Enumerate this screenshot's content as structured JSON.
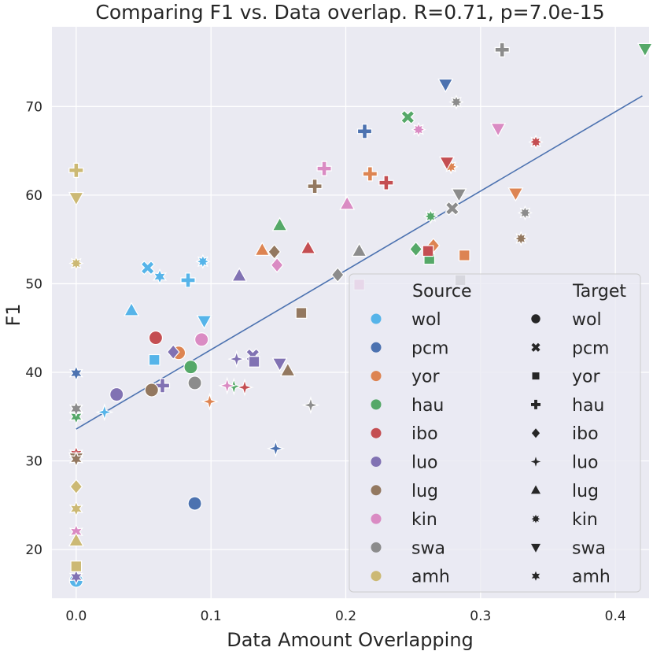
{
  "chart_data": {
    "type": "scatter",
    "title": "Comparing F1 vs. Data overlap. R=0.71, p=7.0e-15",
    "xlabel": "Data Amount Overlapping",
    "ylabel": "F1",
    "xlim": [
      -0.018,
      0.425
    ],
    "ylim": [
      14.5,
      79.0
    ],
    "x_ticks": [
      0.0,
      0.1,
      0.2,
      0.3,
      0.4
    ],
    "x_tick_labels": [
      "0.0",
      "0.1",
      "0.2",
      "0.3",
      "0.4"
    ],
    "y_ticks": [
      20,
      30,
      40,
      50,
      60,
      70
    ],
    "y_tick_labels": [
      "20",
      "30",
      "40",
      "50",
      "60",
      "70"
    ],
    "grid": true,
    "legend_placement": "bottom-right",
    "regression_line": {
      "x": [
        0.0,
        0.42
      ],
      "y": [
        33.6,
        71.2
      ],
      "color": "#4c72b0"
    },
    "sources": [
      {
        "name": "wol",
        "color": "#56b4e9"
      },
      {
        "name": "pcm",
        "color": "#4c72b0"
      },
      {
        "name": "yor",
        "color": "#dd8452"
      },
      {
        "name": "hau",
        "color": "#55a868"
      },
      {
        "name": "ibo",
        "color": "#c44e52"
      },
      {
        "name": "luo",
        "color": "#8172b3"
      },
      {
        "name": "lug",
        "color": "#937860"
      },
      {
        "name": "kin",
        "color": "#da8bc3"
      },
      {
        "name": "swa",
        "color": "#8c8c8c"
      },
      {
        "name": "amh",
        "color": "#ccb974"
      }
    ],
    "targets": [
      {
        "name": "wol",
        "marker": "circle"
      },
      {
        "name": "pcm",
        "marker": "x"
      },
      {
        "name": "yor",
        "marker": "square"
      },
      {
        "name": "hau",
        "marker": "plus"
      },
      {
        "name": "ibo",
        "marker": "diamond"
      },
      {
        "name": "luo",
        "marker": "star4"
      },
      {
        "name": "lug",
        "marker": "triangle-up"
      },
      {
        "name": "kin",
        "marker": "star8"
      },
      {
        "name": "swa",
        "marker": "triangle-down"
      },
      {
        "name": "amh",
        "marker": "star6"
      }
    ],
    "points": [
      {
        "source": "wol",
        "target": "wol",
        "x": 0.0,
        "y": 16.5
      },
      {
        "source": "wol",
        "target": "pcm",
        "x": 0.053,
        "y": 51.8
      },
      {
        "source": "wol",
        "target": "yor",
        "x": 0.058,
        "y": 41.4
      },
      {
        "source": "wol",
        "target": "hau",
        "x": 0.083,
        "y": 50.4
      },
      {
        "source": "wol",
        "target": "luo",
        "x": 0.021,
        "y": 35.5
      },
      {
        "source": "wol",
        "target": "lug",
        "x": 0.041,
        "y": 47.0
      },
      {
        "source": "wol",
        "target": "kin",
        "x": 0.094,
        "y": 52.5
      },
      {
        "source": "wol",
        "target": "swa",
        "x": 0.095,
        "y": 45.8
      },
      {
        "source": "wol",
        "target": "amh",
        "x": 0.062,
        "y": 50.8
      },
      {
        "source": "pcm",
        "target": "wol",
        "x": 0.088,
        "y": 25.2
      },
      {
        "source": "pcm",
        "target": "hau",
        "x": 0.214,
        "y": 67.2
      },
      {
        "source": "pcm",
        "target": "luo",
        "x": 0.148,
        "y": 31.4
      },
      {
        "source": "pcm",
        "target": "swa",
        "x": 0.274,
        "y": 72.5
      },
      {
        "source": "pcm",
        "target": "amh",
        "x": 0.0,
        "y": 39.9
      },
      {
        "source": "yor",
        "target": "wol",
        "x": 0.076,
        "y": 42.2
      },
      {
        "source": "yor",
        "target": "yor",
        "x": 0.288,
        "y": 53.2
      },
      {
        "source": "yor",
        "target": "hau",
        "x": 0.218,
        "y": 62.4
      },
      {
        "source": "yor",
        "target": "ibo",
        "x": 0.265,
        "y": 54.3
      },
      {
        "source": "yor",
        "target": "luo",
        "x": 0.099,
        "y": 36.7
      },
      {
        "source": "yor",
        "target": "lug",
        "x": 0.138,
        "y": 53.8
      },
      {
        "source": "yor",
        "target": "kin",
        "x": 0.278,
        "y": 63.2
      },
      {
        "source": "yor",
        "target": "swa",
        "x": 0.326,
        "y": 60.2
      },
      {
        "source": "hau",
        "target": "wol",
        "x": 0.085,
        "y": 40.6
      },
      {
        "source": "hau",
        "target": "pcm",
        "x": 0.246,
        "y": 68.8
      },
      {
        "source": "hau",
        "target": "yor",
        "x": 0.262,
        "y": 52.8
      },
      {
        "source": "hau",
        "target": "ibo",
        "x": 0.252,
        "y": 53.9
      },
      {
        "source": "hau",
        "target": "luo",
        "x": 0.117,
        "y": 38.4
      },
      {
        "source": "hau",
        "target": "lug",
        "x": 0.151,
        "y": 56.6
      },
      {
        "source": "hau",
        "target": "star8",
        "x": 0.263,
        "y": 57.6
      },
      {
        "source": "hau",
        "target": "amh",
        "x": 0.0,
        "y": 35.0
      },
      {
        "source": "ibo",
        "target": "wol",
        "x": 0.059,
        "y": 43.9
      },
      {
        "source": "ibo",
        "target": "yor",
        "x": 0.261,
        "y": 53.7
      },
      {
        "source": "ibo",
        "target": "hau",
        "x": 0.23,
        "y": 61.4
      },
      {
        "source": "ibo",
        "target": "luo",
        "x": 0.125,
        "y": 38.3
      },
      {
        "source": "ibo",
        "target": "lug",
        "x": 0.172,
        "y": 54.0
      },
      {
        "source": "ibo",
        "target": "kin",
        "x": 0.341,
        "y": 66.0
      },
      {
        "source": "ibo",
        "target": "swa",
        "x": 0.275,
        "y": 63.7
      },
      {
        "source": "ibo",
        "target": "amh",
        "x": 0.0,
        "y": 30.8
      },
      {
        "source": "luo",
        "target": "wol",
        "x": 0.03,
        "y": 37.5
      },
      {
        "source": "luo",
        "target": "pcm",
        "x": 0.131,
        "y": 41.9
      },
      {
        "source": "luo",
        "target": "yor",
        "x": 0.132,
        "y": 41.2
      },
      {
        "source": "luo",
        "target": "hau",
        "x": 0.064,
        "y": 38.5
      },
      {
        "source": "luo",
        "target": "ibo",
        "x": 0.072,
        "y": 42.3
      },
      {
        "source": "luo",
        "target": "luo",
        "x": 0.119,
        "y": 41.5
      },
      {
        "source": "luo",
        "target": "lug",
        "x": 0.121,
        "y": 50.9
      },
      {
        "source": "luo",
        "target": "swa",
        "x": 0.151,
        "y": 41.0
      },
      {
        "source": "luo",
        "target": "amh",
        "x": 0.0,
        "y": 16.9
      },
      {
        "source": "lug",
        "target": "wol",
        "x": 0.056,
        "y": 38.0
      },
      {
        "source": "lug",
        "target": "yor",
        "x": 0.167,
        "y": 46.7
      },
      {
        "source": "lug",
        "target": "hau",
        "x": 0.177,
        "y": 61.0
      },
      {
        "source": "lug",
        "target": "ibo",
        "x": 0.147,
        "y": 53.6
      },
      {
        "source": "lug",
        "target": "lug",
        "x": 0.157,
        "y": 40.2
      },
      {
        "source": "lug",
        "target": "kin",
        "x": 0.33,
        "y": 55.1
      },
      {
        "source": "lug",
        "target": "swa",
        "x": 0.0,
        "y": 30.3
      },
      {
        "source": "lug",
        "target": "amh",
        "x": 0.0,
        "y": 30.2
      },
      {
        "source": "kin",
        "target": "wol",
        "x": 0.093,
        "y": 43.7
      },
      {
        "source": "kin",
        "target": "yor",
        "x": 0.21,
        "y": 49.9
      },
      {
        "source": "kin",
        "target": "hau",
        "x": 0.184,
        "y": 63.0
      },
      {
        "source": "kin",
        "target": "ibo",
        "x": 0.149,
        "y": 52.1
      },
      {
        "source": "kin",
        "target": "luo",
        "x": 0.112,
        "y": 38.5
      },
      {
        "source": "kin",
        "target": "lug",
        "x": 0.201,
        "y": 59.0
      },
      {
        "source": "kin",
        "target": "kin",
        "x": 0.254,
        "y": 67.4
      },
      {
        "source": "kin",
        "target": "swa",
        "x": 0.313,
        "y": 67.5
      },
      {
        "source": "kin",
        "target": "amh",
        "x": 0.0,
        "y": 22.0
      },
      {
        "source": "swa",
        "target": "wol",
        "x": 0.088,
        "y": 38.8
      },
      {
        "source": "swa",
        "target": "yor",
        "x": 0.285,
        "y": 50.4
      },
      {
        "source": "swa",
        "target": "hau",
        "x": 0.316,
        "y": 76.4
      },
      {
        "source": "swa",
        "target": "ibo",
        "x": 0.194,
        "y": 51.0
      },
      {
        "source": "swa",
        "target": "luo",
        "x": 0.174,
        "y": 36.3
      },
      {
        "source": "swa",
        "target": "lug",
        "x": 0.21,
        "y": 53.7
      },
      {
        "source": "swa",
        "target": "kin",
        "x": 0.282,
        "y": 70.5
      },
      {
        "source": "swa",
        "target": "pcm",
        "x": 0.279,
        "y": 58.5
      },
      {
        "source": "swa",
        "target": "swa",
        "x": 0.284,
        "y": 60.1
      },
      {
        "source": "swa",
        "target": "star8",
        "x": 0.333,
        "y": 58.0
      },
      {
        "source": "swa",
        "target": "amh",
        "x": 0.0,
        "y": 35.9
      },
      {
        "source": "amh",
        "target": "yor",
        "x": 0.0,
        "y": 18.1
      },
      {
        "source": "amh",
        "target": "hau",
        "x": 0.0,
        "y": 62.8
      },
      {
        "source": "amh",
        "target": "ibo",
        "x": 0.0,
        "y": 27.1
      },
      {
        "source": "amh",
        "target": "lug",
        "x": 0.0,
        "y": 21.0
      },
      {
        "source": "amh",
        "target": "kin",
        "x": 0.0,
        "y": 52.3
      },
      {
        "source": "amh",
        "target": "swa",
        "x": 0.0,
        "y": 59.7
      },
      {
        "source": "amh",
        "target": "amh",
        "x": 0.0,
        "y": 24.6
      },
      {
        "source": "hau",
        "target": "swa",
        "x": 0.422,
        "y": 76.5
      }
    ],
    "legend": {
      "source_title": "Source",
      "target_title": "Target"
    }
  }
}
